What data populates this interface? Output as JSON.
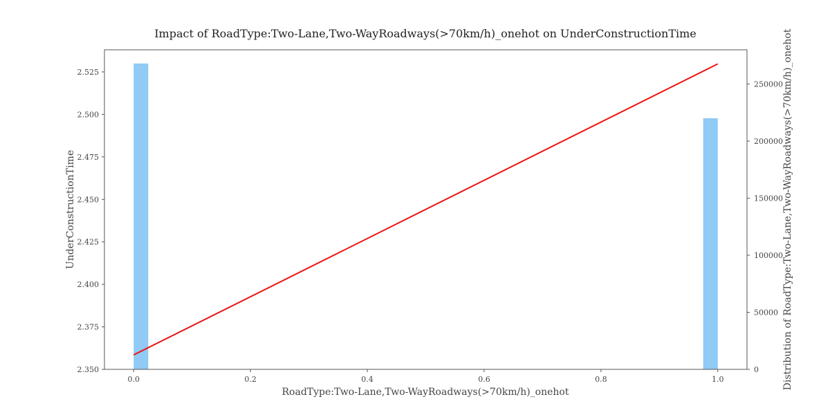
{
  "chart_data": {
    "type": "bar+line",
    "title": "Impact of RoadType:Two-Lane,Two-WayRoadways(>70km/h)_onehot on UnderConstructionTime",
    "xlabel": "RoadType:Two-Lane,Two-WayRoadways(>70km/h)_onehot",
    "ylabel_left": "UnderConstructionTime",
    "ylabel_right": "Distribution of RoadType:Two-Lane,Two-WayRoadways(>70km/h)_onehot",
    "xlim": [
      -0.05,
      1.05
    ],
    "ylim_left": [
      2.35,
      2.538
    ],
    "ylim_right": [
      0,
      280000
    ],
    "x_ticks": [
      "0.0",
      "0.2",
      "0.4",
      "0.6",
      "0.8",
      "1.0"
    ],
    "y_left_ticks": [
      "2.350",
      "2.375",
      "2.400",
      "2.425",
      "2.450",
      "2.475",
      "2.500",
      "2.525"
    ],
    "y_right_ticks": [
      "0",
      "50000",
      "100000",
      "150000",
      "200000",
      "250000"
    ],
    "histogram": {
      "name": "Distribution",
      "color": "#90caf5",
      "bins": [
        {
          "x_start": 0.0,
          "x_end": 0.025,
          "count": 268000
        },
        {
          "x_start": 0.975,
          "x_end": 1.0,
          "count": 220000
        }
      ]
    },
    "line": {
      "name": "UnderConstructionTime",
      "color": "#ee1111",
      "x": [
        0.0,
        1.0
      ],
      "y": [
        2.3585,
        2.5297
      ]
    },
    "grid": false
  }
}
